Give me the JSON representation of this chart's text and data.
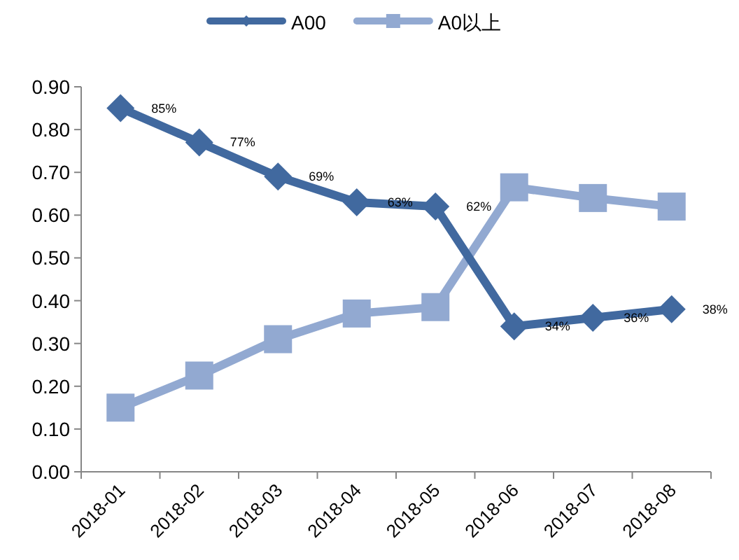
{
  "chart_data": {
    "type": "line",
    "categories": [
      "2018-01",
      "2018-02",
      "2018-03",
      "2018-04",
      "2018-05",
      "2018-06",
      "2018-07",
      "2018-08"
    ],
    "series": [
      {
        "name": "A00",
        "color": "#41699f",
        "marker": "diamond",
        "values": [
          0.85,
          0.77,
          0.69,
          0.63,
          0.62,
          0.34,
          0.36,
          0.38
        ],
        "value_labels": [
          "85%",
          "77%",
          "69%",
          "63%",
          "62%",
          "34%",
          "36%",
          "38%"
        ]
      },
      {
        "name": "A0以上",
        "color": "#92a9d1",
        "marker": "square",
        "values": [
          0.15,
          0.225,
          0.31,
          0.37,
          0.385,
          0.665,
          0.64,
          0.62
        ]
      }
    ],
    "ylim": [
      0,
      0.9
    ],
    "yticks": [
      {
        "value": 0,
        "label": "0.00"
      },
      {
        "value": 0.1,
        "label": "0.10"
      },
      {
        "value": 0.2,
        "label": "0.20"
      },
      {
        "value": 0.3,
        "label": "0.30"
      },
      {
        "value": 0.4,
        "label": "0.40"
      },
      {
        "value": 0.5,
        "label": "0.50"
      },
      {
        "value": 0.6,
        "label": "0.60"
      },
      {
        "value": 0.7,
        "label": "0.70"
      },
      {
        "value": 0.8,
        "label": "0.80"
      },
      {
        "value": 0.9,
        "label": "0.90"
      }
    ],
    "legend": "top",
    "grid": false
  }
}
